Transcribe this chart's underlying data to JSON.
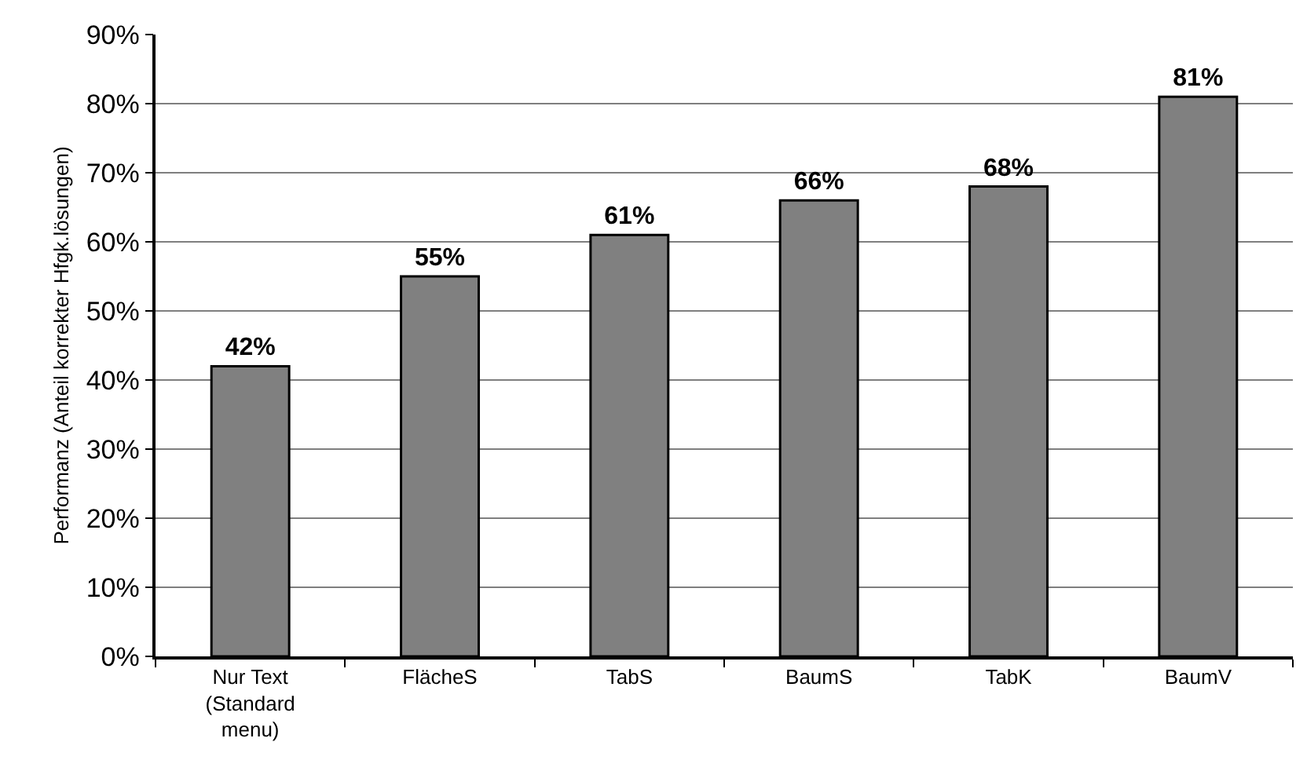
{
  "chart_data": {
    "type": "bar",
    "ylabel": "Performanz (Anteil korrekter Hfgk.lösungen)",
    "categories": [
      "Nur Text (Standard menu)",
      "FlächeS",
      "TabS",
      "BaumS",
      "TabK",
      "BaumV"
    ],
    "values": [
      42,
      55,
      61,
      66,
      68,
      81
    ],
    "value_labels": [
      "42%",
      "55%",
      "61%",
      "66%",
      "68%",
      "81%"
    ],
    "color": "#808080",
    "ylim": [
      0,
      90
    ],
    "yticks": [
      {
        "value": 0,
        "label": "0%"
      },
      {
        "value": 10,
        "label": "10%"
      },
      {
        "value": 20,
        "label": "20%"
      },
      {
        "value": 30,
        "label": "30%"
      },
      {
        "value": 40,
        "label": "40%"
      },
      {
        "value": 50,
        "label": "50%"
      },
      {
        "value": 60,
        "label": "60%"
      },
      {
        "value": 70,
        "label": "70%"
      },
      {
        "value": 80,
        "label": "80%"
      },
      {
        "value": 90,
        "label": "90%"
      }
    ],
    "grid": "y"
  }
}
